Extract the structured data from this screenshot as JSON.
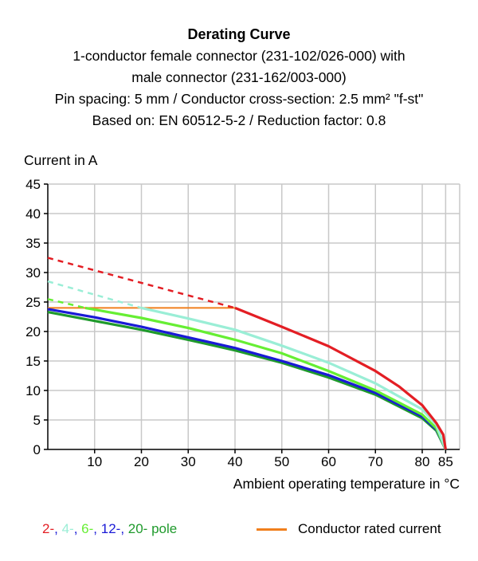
{
  "colors": {
    "2_pole": "#e31e24",
    "4_pole": "#9aeed6",
    "6_pole": "#66ee33",
    "12_pole": "#1a1ad6",
    "20_pole": "#1f9a2c",
    "rated_current": "#f07f1d",
    "grid": "#c8c8c8"
  },
  "chart_data": {
    "type": "line",
    "title": "Derating Curve",
    "subtitle": [
      "1-conductor female connector (231-102/026-000) with",
      "male connector (231-162/003-000)",
      "Pin spacing: 5 mm / Conductor cross-section: 2.5 mm² \"f-st\"",
      "Based on: EN 60512-5-2 / Reduction factor: 0.8"
    ],
    "ylabel": "Current in A",
    "xlabel": "Ambient operating temperature in °C",
    "xlim": [
      0,
      88
    ],
    "ylim": [
      0,
      45
    ],
    "x_ticks": [
      10,
      20,
      30,
      40,
      50,
      60,
      70,
      80,
      85
    ],
    "y_ticks": [
      0,
      5,
      10,
      15,
      20,
      25,
      30,
      35,
      40,
      45
    ],
    "grid": true,
    "legend_left": {
      "items": [
        {
          "text": "2-",
          "color_key": "2_pole"
        },
        {
          "text": ", ",
          "color_key": "12_pole"
        },
        {
          "text": "4-",
          "color_key": "4_pole"
        },
        {
          "text": ", ",
          "color_key": "12_pole"
        },
        {
          "text": "6-",
          "color_key": "6_pole"
        },
        {
          "text": ", ",
          "color_key": "12_pole"
        },
        {
          "text": "12-",
          "color_key": "12_pole"
        },
        {
          "text": ", ",
          "color_key": "12_pole"
        },
        {
          "text": "20-",
          "color_key": "20_pole"
        },
        {
          "text": " pole",
          "color_key": "20_pole"
        }
      ]
    },
    "legend_right": "Conductor rated current",
    "rated_current": {
      "name": "Conductor rated current",
      "y": 24,
      "x": [
        0,
        40
      ]
    },
    "series": [
      {
        "color_key": "2_pole",
        "dashed": {
          "x": [
            0,
            40
          ],
          "y": [
            32.5,
            24
          ]
        },
        "solid": {
          "x": [
            40,
            50,
            60,
            70,
            75,
            80,
            83,
            84.5,
            85
          ],
          "y": [
            24,
            20.8,
            17.5,
            13.3,
            10.7,
            7.5,
            4.5,
            2.5,
            0
          ]
        }
      },
      {
        "color_key": "4_pole",
        "dashed": {
          "x": [
            0,
            20
          ],
          "y": [
            28.5,
            24
          ]
        },
        "solid": {
          "x": [
            20,
            30,
            40,
            50,
            60,
            70,
            80,
            83,
            85
          ],
          "y": [
            24,
            22.2,
            20.3,
            17.6,
            14.7,
            11.2,
            6.8,
            4.2,
            0
          ]
        }
      },
      {
        "color_key": "6_pole",
        "dashed": {
          "x": [
            0,
            8
          ],
          "y": [
            25.5,
            24
          ]
        },
        "solid": {
          "x": [
            8,
            20,
            30,
            40,
            50,
            60,
            70,
            80,
            83,
            85
          ],
          "y": [
            24,
            22.3,
            20.6,
            18.6,
            16.3,
            13.3,
            10,
            5.9,
            3.6,
            0
          ]
        }
      },
      {
        "color_key": "12_pole",
        "solid": {
          "x": [
            0,
            10,
            20,
            30,
            40,
            50,
            60,
            70,
            80,
            83,
            85
          ],
          "y": [
            23.8,
            22.4,
            20.8,
            19,
            17.2,
            15,
            12.6,
            9.6,
            5.6,
            3.4,
            0
          ]
        }
      },
      {
        "color_key": "20_pole",
        "solid": {
          "x": [
            0,
            10,
            20,
            30,
            40,
            50,
            60,
            70,
            80,
            83,
            85
          ],
          "y": [
            23.3,
            21.8,
            20.3,
            18.6,
            16.8,
            14.7,
            12.2,
            9.3,
            5.3,
            3.2,
            0
          ]
        }
      }
    ]
  }
}
